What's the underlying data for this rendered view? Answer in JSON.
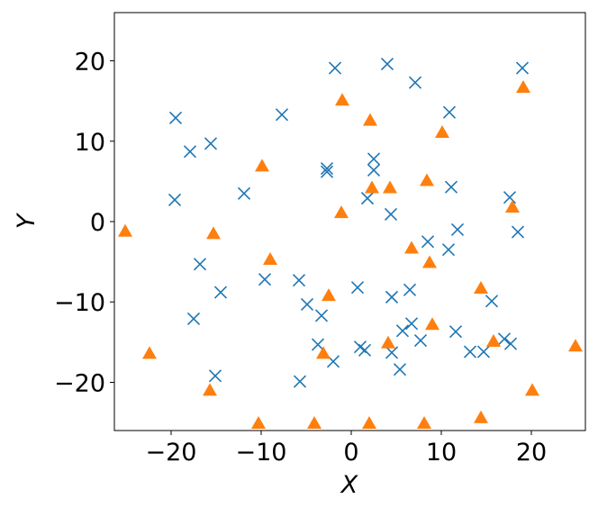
{
  "chart_data": {
    "type": "scatter",
    "xlabel": "X",
    "ylabel": "Y",
    "xlim": [
      -26.3,
      26
    ],
    "ylim": [
      -26,
      26
    ],
    "xticks": [
      {
        "value": -20,
        "label": "−20"
      },
      {
        "value": -10,
        "label": "−10"
      },
      0,
      10,
      20
    ],
    "yticks": [
      {
        "value": -20,
        "label": "−20"
      },
      {
        "value": -10,
        "label": "−10"
      },
      0,
      10,
      20
    ],
    "series": [
      {
        "marker": "x",
        "color": "#1f77b4",
        "x": [
          -19.5,
          -19.6,
          -17.9,
          -15.6,
          -11.9,
          -7.7,
          -1.8,
          4.0,
          7.1,
          19.0,
          10.9,
          2.5,
          2.5,
          -2.7,
          -2.7,
          1.8,
          4.4,
          11.1,
          17.6,
          18.5,
          11.8,
          10.8,
          8.5,
          -16.8,
          -14.5,
          -9.6,
          -5.8,
          -4.9,
          -3.3,
          0.7,
          4.5,
          6.5,
          -17.5,
          15.6,
          6.7,
          5.7,
          11.6,
          -3.7,
          1.0,
          1.5,
          4.5,
          7.7,
          5.4,
          -2.0,
          13.2,
          14.7,
          17.0,
          17.7,
          -15.1,
          -5.7
        ],
        "y": [
          12.9,
          2.7,
          8.7,
          9.7,
          3.5,
          13.3,
          19.1,
          19.6,
          17.3,
          19.1,
          13.6,
          7.8,
          6.4,
          6.6,
          6.2,
          2.9,
          0.9,
          4.3,
          3.0,
          -1.3,
          -1.0,
          -3.5,
          -2.5,
          -5.3,
          -8.8,
          -7.2,
          -7.3,
          -10.3,
          -11.7,
          -8.2,
          -9.4,
          -8.5,
          -12.1,
          -9.9,
          -12.7,
          -13.6,
          -13.7,
          -15.3,
          -15.6,
          -16.0,
          -16.3,
          -14.8,
          -18.4,
          -17.4,
          -16.2,
          -16.2,
          -14.6,
          -15.2,
          -19.2,
          -19.9
        ]
      },
      {
        "marker": "^",
        "color": "#ff7f0e",
        "x": [
          -25.1,
          -22.4,
          -15.7,
          -15.3,
          -9.9,
          -9.0,
          -1.0,
          -1.1,
          -2.5,
          -3.1,
          2.1,
          2.3,
          4.3,
          8.4,
          10.1,
          19.1,
          17.9,
          6.7,
          8.7,
          9.0,
          14.4,
          4.1,
          15.8,
          24.9,
          20.1,
          14.4,
          -10.3,
          -4.1,
          2.0,
          8.1
        ],
        "y": [
          -1.2,
          -16.4,
          -21.0,
          -1.5,
          6.9,
          -4.7,
          15.1,
          1.1,
          -9.2,
          -16.4,
          12.6,
          4.2,
          4.2,
          5.1,
          11.1,
          16.7,
          1.8,
          -3.3,
          -5.1,
          -12.8,
          -8.3,
          -15.1,
          -14.9,
          -15.5,
          -21.0,
          -24.4,
          -25.1,
          -25.1,
          -25.1,
          -25.1
        ]
      }
    ]
  }
}
